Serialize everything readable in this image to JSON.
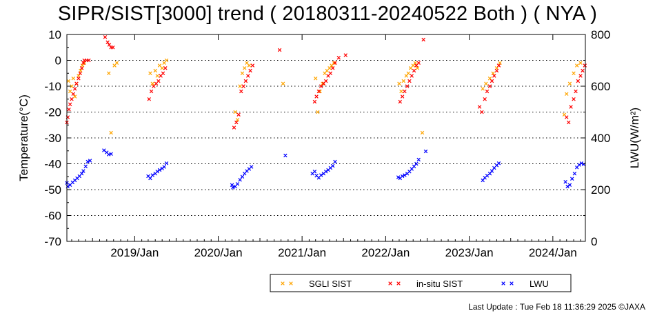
{
  "chart_data": {
    "type": "scatter",
    "title": "SIPR/SIST[3000] trend ( 20180311-20240522 Both ) ( NYA )",
    "ylabel": "Temperature(°C)",
    "y2label": "LWU(W/m²)",
    "ylim": [
      -70,
      10
    ],
    "y2lim": [
      0,
      800
    ],
    "yticks": [
      "10",
      "0",
      "-10",
      "-20",
      "-30",
      "-40",
      "-50",
      "-60",
      "-70"
    ],
    "y2ticks": [
      "800",
      "600",
      "400",
      "200",
      "0"
    ],
    "xlim": [
      "2018-03-11",
      "2024-05-22"
    ],
    "xticks": [
      {
        "date": "2019-01-01",
        "label": "2019/Jan"
      },
      {
        "date": "2020-01-01",
        "label": "2020/Jan"
      },
      {
        "date": "2021-01-01",
        "label": "2021/Jan"
      },
      {
        "date": "2022-01-01",
        "label": "2022/Jan"
      },
      {
        "date": "2023-01-01",
        "label": "2023/Jan"
      },
      {
        "date": "2024-01-01",
        "label": "2024/Jan"
      }
    ],
    "grid": "horizontal dotted",
    "legend": "bottom",
    "marker": "x",
    "series": [
      {
        "name": "SGLI SIST",
        "color": "#ffa500",
        "axis": "left",
        "points": [
          [
            "2018-03-18",
            -8
          ],
          [
            "2018-03-25",
            -12
          ],
          [
            "2018-04-01",
            -10
          ],
          [
            "2018-04-08",
            -7
          ],
          [
            "2018-04-15",
            -14
          ],
          [
            "2018-04-22",
            -9
          ],
          [
            "2018-05-01",
            -6
          ],
          [
            "2018-05-10",
            -4
          ],
          [
            "2018-05-18",
            -2
          ],
          [
            "2018-05-26",
            -1
          ],
          [
            "2018-09-10",
            -5
          ],
          [
            "2018-09-20",
            -28
          ],
          [
            "2018-10-05",
            -2
          ],
          [
            "2018-10-15",
            -1
          ],
          [
            "2019-03-10",
            -5
          ],
          [
            "2019-03-20",
            -9
          ],
          [
            "2019-04-01",
            -4
          ],
          [
            "2019-04-10",
            -6
          ],
          [
            "2019-04-20",
            -2
          ],
          [
            "2019-05-01",
            -3
          ],
          [
            "2019-05-10",
            -1
          ],
          [
            "2019-05-20",
            0
          ],
          [
            "2020-03-15",
            -20
          ],
          [
            "2020-03-25",
            -23
          ],
          [
            "2020-04-05",
            -10
          ],
          [
            "2020-04-15",
            -5
          ],
          [
            "2020-04-25",
            -3
          ],
          [
            "2020-05-05",
            -1
          ],
          [
            "2020-05-15",
            -2
          ],
          [
            "2020-10-10",
            -9
          ],
          [
            "2021-03-01",
            -7
          ],
          [
            "2021-03-10",
            -20
          ],
          [
            "2021-03-20",
            -12
          ],
          [
            "2021-04-01",
            -9
          ],
          [
            "2021-04-10",
            -5
          ],
          [
            "2021-04-20",
            -4
          ],
          [
            "2021-05-01",
            -3
          ],
          [
            "2021-05-10",
            -2
          ],
          [
            "2021-05-20",
            -1
          ],
          [
            "2022-03-01",
            -9
          ],
          [
            "2022-03-10",
            -12
          ],
          [
            "2022-03-20",
            -8
          ],
          [
            "2022-04-01",
            -6
          ],
          [
            "2022-04-10",
            -5
          ],
          [
            "2022-04-20",
            -3
          ],
          [
            "2022-05-01",
            -2
          ],
          [
            "2022-05-10",
            -1
          ],
          [
            "2022-05-20",
            -3
          ],
          [
            "2022-06-10",
            -28
          ],
          [
            "2023-03-01",
            -11
          ],
          [
            "2023-03-15",
            -9
          ],
          [
            "2023-04-01",
            -7
          ],
          [
            "2023-04-15",
            -5
          ],
          [
            "2023-05-01",
            -3
          ],
          [
            "2023-05-15",
            -1
          ],
          [
            "2024-02-20",
            -21
          ],
          [
            "2024-03-01",
            -13
          ],
          [
            "2024-03-15",
            -9
          ],
          [
            "2024-04-01",
            -5
          ],
          [
            "2024-04-15",
            -2
          ],
          [
            "2024-05-01",
            -1
          ]
        ]
      },
      {
        "name": "in-situ SIST",
        "color": "#ff0000",
        "axis": "left",
        "points": [
          [
            "2018-03-11",
            -24
          ],
          [
            "2018-03-15",
            -22
          ],
          [
            "2018-03-20",
            -19
          ],
          [
            "2018-03-25",
            -17
          ],
          [
            "2018-04-01",
            -15
          ],
          [
            "2018-04-08",
            -13
          ],
          [
            "2018-04-15",
            -11
          ],
          [
            "2018-04-22",
            -9
          ],
          [
            "2018-05-01",
            -7
          ],
          [
            "2018-05-08",
            -5
          ],
          [
            "2018-05-15",
            -3
          ],
          [
            "2018-05-22",
            -1
          ],
          [
            "2018-05-26",
            0
          ],
          [
            "2018-06-05",
            0
          ],
          [
            "2018-06-15",
            0
          ],
          [
            "2018-08-25",
            9
          ],
          [
            "2018-09-05",
            7
          ],
          [
            "2018-09-12",
            6
          ],
          [
            "2018-09-20",
            5
          ],
          [
            "2018-09-28",
            5
          ],
          [
            "2019-03-05",
            -15
          ],
          [
            "2019-03-15",
            -12
          ],
          [
            "2019-03-25",
            -10
          ],
          [
            "2019-04-05",
            -9
          ],
          [
            "2019-04-15",
            -8
          ],
          [
            "2019-04-25",
            -6
          ],
          [
            "2019-05-05",
            -5
          ],
          [
            "2019-05-15",
            -3
          ],
          [
            "2020-03-10",
            -26
          ],
          [
            "2020-03-20",
            -24
          ],
          [
            "2020-03-30",
            -21
          ],
          [
            "2020-04-10",
            -12
          ],
          [
            "2020-04-20",
            -10
          ],
          [
            "2020-04-30",
            -8
          ],
          [
            "2020-05-10",
            -6
          ],
          [
            "2020-05-20",
            -4
          ],
          [
            "2020-05-30",
            -2
          ],
          [
            "2020-09-25",
            4
          ],
          [
            "2021-02-25",
            -16
          ],
          [
            "2021-03-05",
            -14
          ],
          [
            "2021-03-15",
            -12
          ],
          [
            "2021-03-25",
            -10
          ],
          [
            "2021-04-05",
            -9
          ],
          [
            "2021-04-15",
            -8
          ],
          [
            "2021-04-25",
            -6
          ],
          [
            "2021-05-05",
            -5
          ],
          [
            "2021-05-15",
            -3
          ],
          [
            "2021-05-25",
            -1
          ],
          [
            "2021-06-10",
            1
          ],
          [
            "2021-07-10",
            2
          ],
          [
            "2022-03-05",
            -16
          ],
          [
            "2022-03-15",
            -14
          ],
          [
            "2022-03-25",
            -12
          ],
          [
            "2022-04-05",
            -10
          ],
          [
            "2022-04-15",
            -8
          ],
          [
            "2022-04-25",
            -6
          ],
          [
            "2022-05-05",
            -4
          ],
          [
            "2022-05-15",
            -2
          ],
          [
            "2022-05-25",
            -1
          ],
          [
            "2022-06-15",
            8
          ],
          [
            "2023-02-15",
            -18
          ],
          [
            "2023-02-25",
            -20
          ],
          [
            "2023-03-10",
            -15
          ],
          [
            "2023-03-20",
            -12
          ],
          [
            "2023-04-01",
            -10
          ],
          [
            "2023-04-10",
            -8
          ],
          [
            "2023-04-20",
            -6
          ],
          [
            "2023-05-01",
            -4
          ],
          [
            "2023-05-10",
            -2
          ],
          [
            "2024-03-01",
            -22
          ],
          [
            "2024-03-10",
            -24
          ],
          [
            "2024-03-20",
            -18
          ],
          [
            "2024-04-01",
            -15
          ],
          [
            "2024-04-10",
            -12
          ],
          [
            "2024-04-20",
            -8
          ],
          [
            "2024-05-01",
            -6
          ],
          [
            "2024-05-10",
            -4
          ],
          [
            "2024-05-20",
            -2
          ]
        ]
      },
      {
        "name": "LWU",
        "color": "#0000ff",
        "axis": "right",
        "points": [
          [
            "2018-03-11",
            226
          ],
          [
            "2018-03-15",
            212
          ],
          [
            "2018-03-25",
            218
          ],
          [
            "2018-04-05",
            228
          ],
          [
            "2018-04-15",
            236
          ],
          [
            "2018-04-25",
            244
          ],
          [
            "2018-05-05",
            252
          ],
          [
            "2018-05-15",
            262
          ],
          [
            "2018-05-22",
            272
          ],
          [
            "2018-06-01",
            290
          ],
          [
            "2018-06-10",
            308
          ],
          [
            "2018-06-20",
            312
          ],
          [
            "2018-08-20",
            352
          ],
          [
            "2018-09-01",
            344
          ],
          [
            "2018-09-10",
            336
          ],
          [
            "2018-09-20",
            338
          ],
          [
            "2019-03-01",
            252
          ],
          [
            "2019-03-10",
            244
          ],
          [
            "2019-03-20",
            256
          ],
          [
            "2019-04-01",
            262
          ],
          [
            "2019-04-10",
            270
          ],
          [
            "2019-04-20",
            276
          ],
          [
            "2019-05-01",
            282
          ],
          [
            "2019-05-10",
            288
          ],
          [
            "2019-05-20",
            302
          ],
          [
            "2020-03-01",
            218
          ],
          [
            "2020-03-05",
            208
          ],
          [
            "2020-03-15",
            212
          ],
          [
            "2020-03-25",
            222
          ],
          [
            "2020-04-05",
            238
          ],
          [
            "2020-04-15",
            250
          ],
          [
            "2020-04-25",
            262
          ],
          [
            "2020-05-05",
            272
          ],
          [
            "2020-05-15",
            280
          ],
          [
            "2020-05-25",
            288
          ],
          [
            "2020-10-20",
            332
          ],
          [
            "2021-02-15",
            262
          ],
          [
            "2021-02-25",
            270
          ],
          [
            "2021-03-05",
            254
          ],
          [
            "2021-03-15",
            246
          ],
          [
            "2021-03-25",
            256
          ],
          [
            "2021-04-05",
            262
          ],
          [
            "2021-04-15",
            270
          ],
          [
            "2021-04-25",
            276
          ],
          [
            "2021-05-05",
            284
          ],
          [
            "2021-05-15",
            292
          ],
          [
            "2021-05-25",
            308
          ],
          [
            "2022-02-25",
            248
          ],
          [
            "2022-03-05",
            244
          ],
          [
            "2022-03-15",
            252
          ],
          [
            "2022-03-25",
            256
          ],
          [
            "2022-04-05",
            262
          ],
          [
            "2022-04-15",
            270
          ],
          [
            "2022-04-25",
            280
          ],
          [
            "2022-05-05",
            290
          ],
          [
            "2022-05-15",
            300
          ],
          [
            "2022-05-25",
            316
          ],
          [
            "2022-06-25",
            348
          ],
          [
            "2023-03-01",
            236
          ],
          [
            "2023-03-10",
            246
          ],
          [
            "2023-03-20",
            254
          ],
          [
            "2023-04-01",
            262
          ],
          [
            "2023-04-10",
            272
          ],
          [
            "2023-04-20",
            284
          ],
          [
            "2023-05-01",
            294
          ],
          [
            "2023-05-10",
            302
          ],
          [
            "2024-02-25",
            230
          ],
          [
            "2024-03-05",
            212
          ],
          [
            "2024-03-15",
            218
          ],
          [
            "2024-03-25",
            242
          ],
          [
            "2024-04-05",
            262
          ],
          [
            "2024-04-15",
            286
          ],
          [
            "2024-04-25",
            296
          ],
          [
            "2024-05-05",
            302
          ],
          [
            "2024-05-15",
            298
          ]
        ]
      }
    ]
  },
  "footer": {
    "last_update": "Last Update : Tue Feb 18 11:36:29 2025  ©JAXA"
  }
}
